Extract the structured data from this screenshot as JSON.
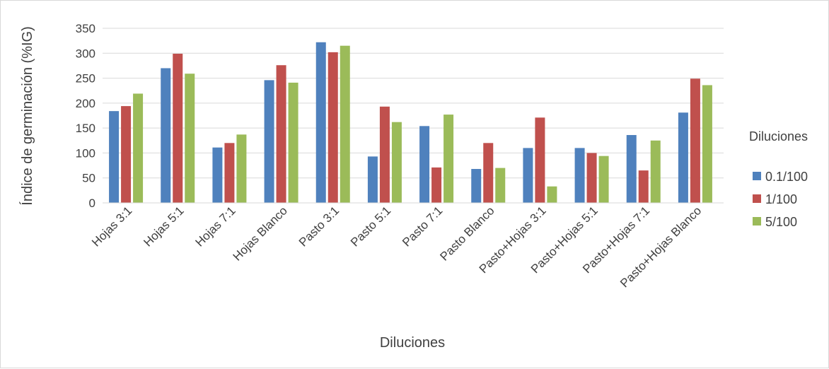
{
  "chart_data": {
    "type": "bar",
    "title": "",
    "xlabel": "Diluciones",
    "ylabel": "Índice de germinación (%IG)",
    "ylim": [
      0,
      350
    ],
    "yticks": [
      0,
      50,
      100,
      150,
      200,
      250,
      300,
      350
    ],
    "grid": true,
    "legend": {
      "title": "Diluciones",
      "position": "right"
    },
    "categories": [
      "Hojas 3:1",
      "Hojas 5:1",
      "Hojas 7:1",
      "Hojas Blanco",
      "Pasto 3:1",
      "Pasto 5:1",
      "Pasto 7:1",
      "Pasto Blanco",
      "Pasto+Hojas 3:1",
      "Pasto+Hojas 5:1",
      "Pasto+Hojas 7:1",
      "Pasto+Hojas Blanco"
    ],
    "series": [
      {
        "name": "0.1/100",
        "color": "#4f81bd",
        "values": [
          184,
          270,
          111,
          246,
          322,
          93,
          154,
          68,
          110,
          110,
          136,
          181
        ]
      },
      {
        "name": "1/100",
        "color": "#c0504d",
        "values": [
          194,
          299,
          120,
          276,
          302,
          193,
          71,
          120,
          171,
          100,
          65,
          249
        ]
      },
      {
        "name": "5/100",
        "color": "#9bbb59",
        "values": [
          219,
          259,
          137,
          241,
          315,
          162,
          177,
          70,
          33,
          94,
          125,
          236
        ]
      }
    ]
  }
}
